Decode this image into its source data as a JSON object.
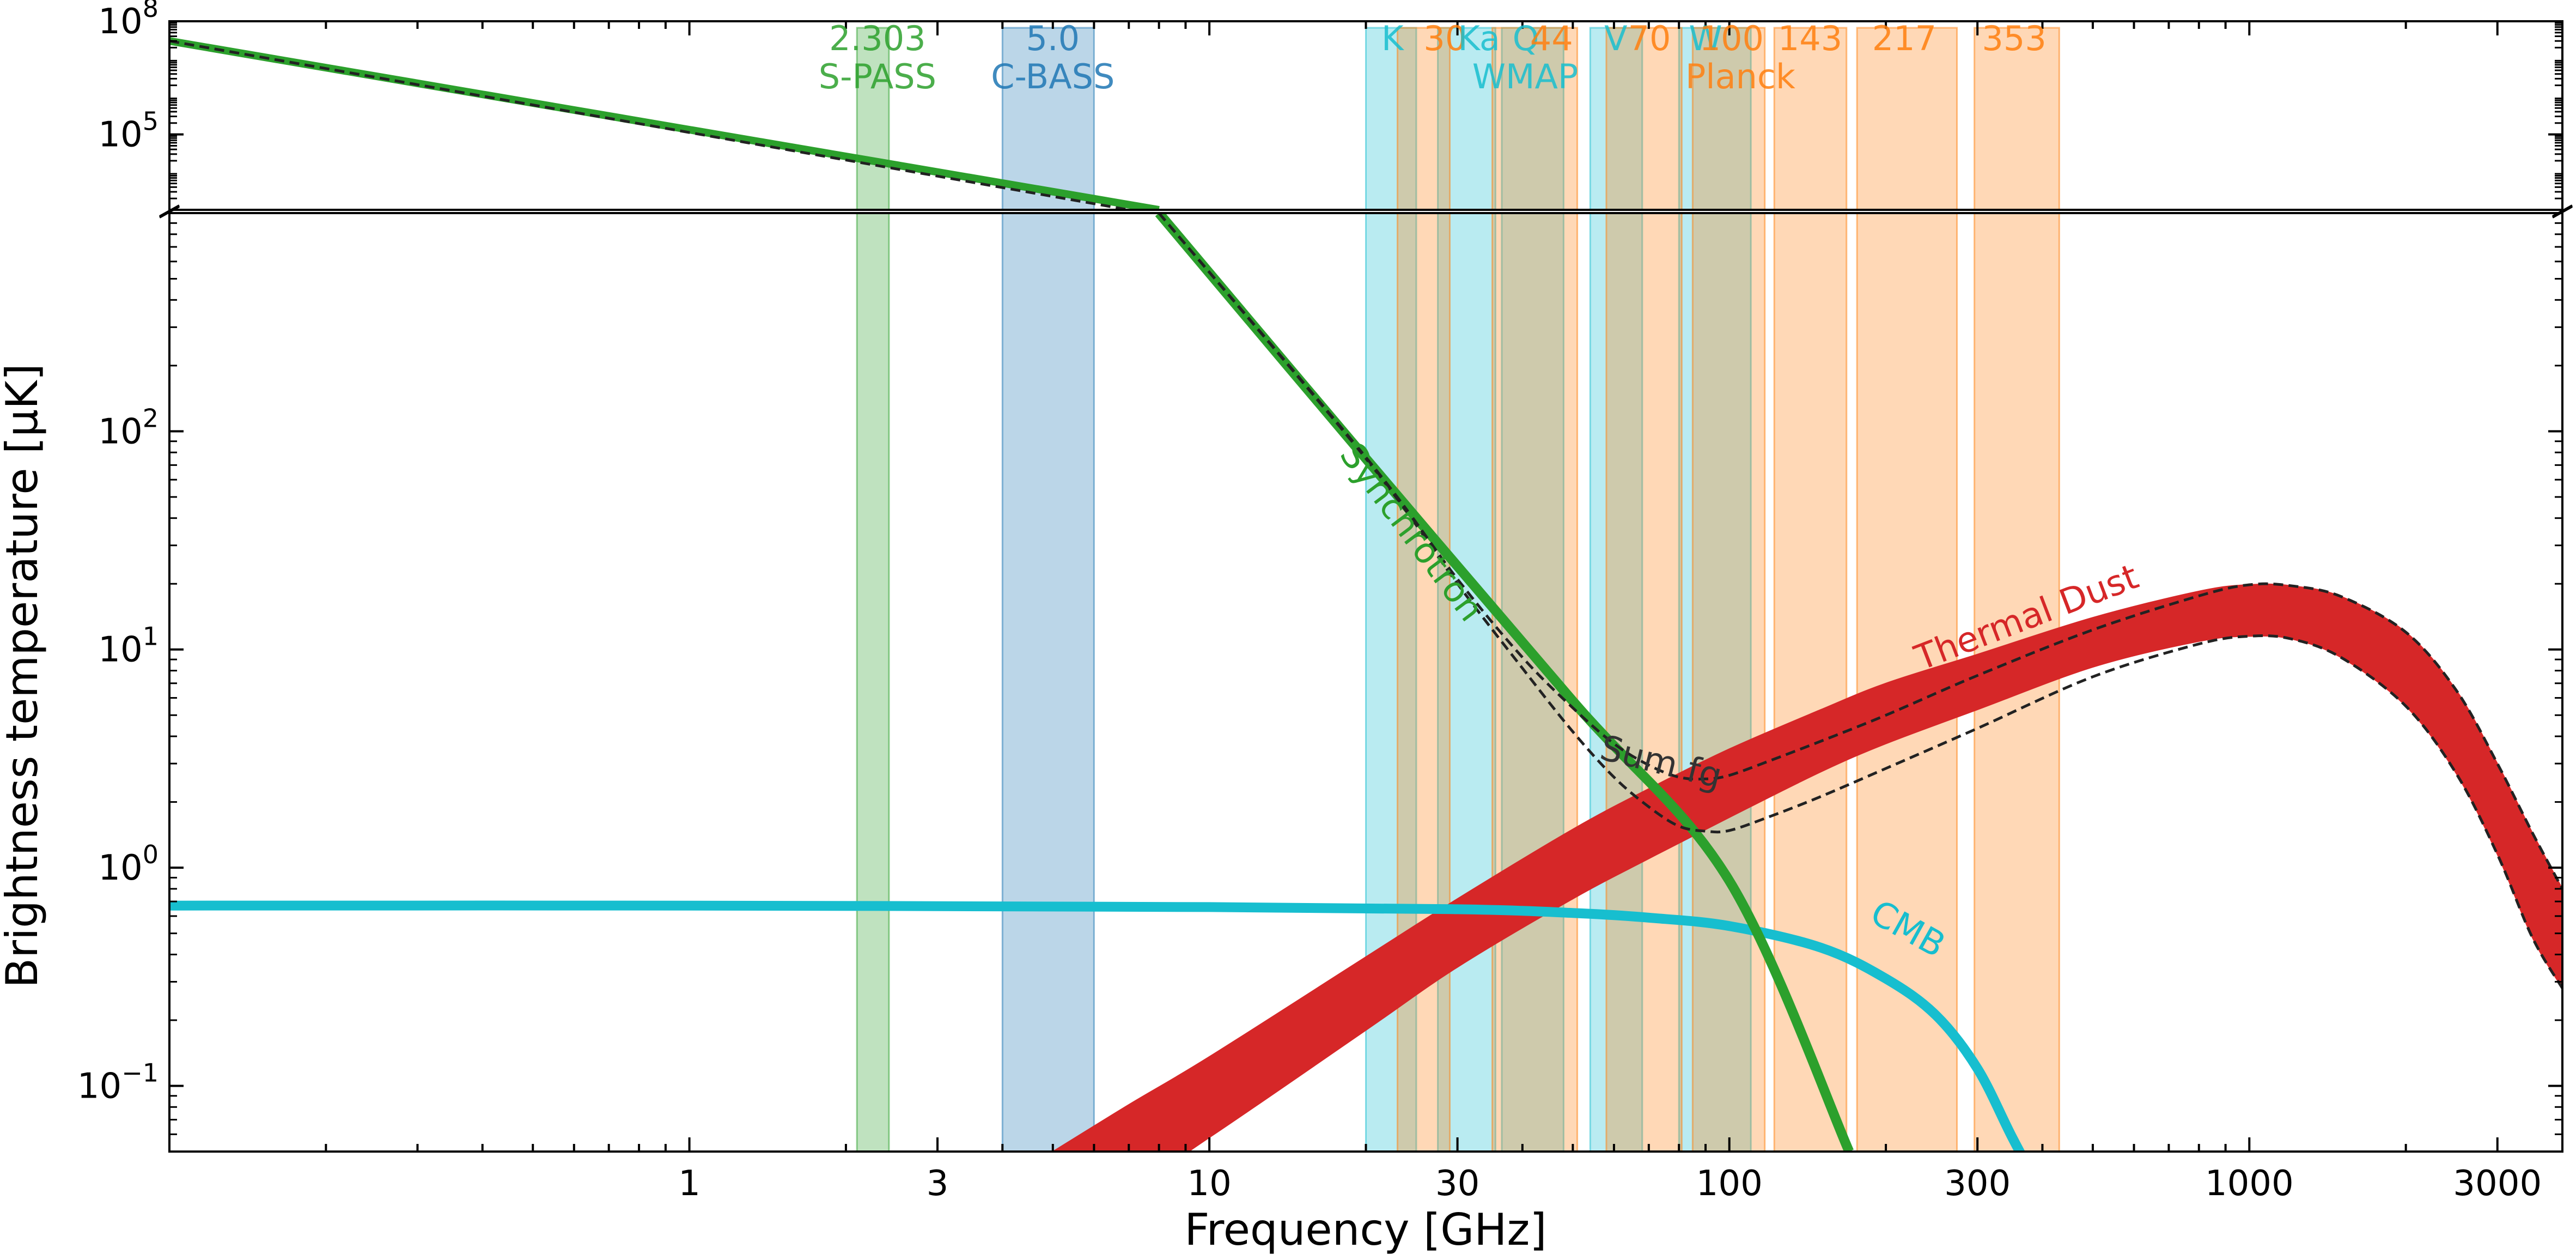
{
  "chart_data": {
    "type": "line",
    "xlabel": "Frequency [GHz]",
    "ylabel": "Brightness temperature [μK]",
    "x_scale": "log",
    "y_scale": "log",
    "xlim": [
      0.1,
      4000
    ],
    "x_ticks": [
      {
        "value": 1,
        "label": "1"
      },
      {
        "value": 3,
        "label": "3"
      },
      {
        "value": 10,
        "label": "10"
      },
      {
        "value": 30,
        "label": "30"
      },
      {
        "value": 100,
        "label": "100"
      },
      {
        "value": 300,
        "label": "300"
      },
      {
        "value": 1000,
        "label": "1000"
      },
      {
        "value": 3000,
        "label": "3000"
      }
    ],
    "panels": {
      "top": {
        "ylim": [
          1000.0,
          100000000.0
        ],
        "y_ticks": [
          {
            "value": 100000.0,
            "base": "10",
            "exp": "5"
          },
          {
            "value": 100000000.0,
            "base": "10",
            "exp": "8"
          }
        ]
      },
      "bottom": {
        "ylim": [
          0.05,
          1000
        ],
        "y_ticks": [
          {
            "value": 0.1,
            "base": "10",
            "exp": "−1"
          },
          {
            "value": 1,
            "base": "10",
            "exp": "0"
          },
          {
            "value": 10,
            "base": "10",
            "exp": "1"
          },
          {
            "value": 100,
            "base": "10",
            "exp": "2"
          }
        ]
      }
    },
    "bands": [
      {
        "lo": 2.1,
        "hi": 2.42,
        "color": "#2ca02c",
        "group": "S-PASS"
      },
      {
        "lo": 4.0,
        "hi": 6.0,
        "color": "#1f77b4",
        "group": "C-BASS"
      },
      {
        "lo": 20.0,
        "hi": 25.0,
        "color": "#17becf",
        "group": "WMAP"
      },
      {
        "lo": 27.5,
        "hi": 35.5,
        "color": "#17becf",
        "group": "WMAP"
      },
      {
        "lo": 36.5,
        "hi": 48.0,
        "color": "#17becf",
        "group": "WMAP"
      },
      {
        "lo": 54.0,
        "hi": 68.0,
        "color": "#17becf",
        "group": "WMAP"
      },
      {
        "lo": 80.0,
        "hi": 110.0,
        "color": "#17becf",
        "group": "WMAP"
      },
      {
        "lo": 23.0,
        "hi": 29.0,
        "color": "#ff7f0e",
        "group": "Planck"
      },
      {
        "lo": 35.0,
        "hi": 51.0,
        "color": "#ff7f0e",
        "group": "Planck"
      },
      {
        "lo": 58.0,
        "hi": 81.0,
        "color": "#ff7f0e",
        "group": "Planck"
      },
      {
        "lo": 85.0,
        "hi": 117.0,
        "color": "#ff7f0e",
        "group": "Planck"
      },
      {
        "lo": 122.0,
        "hi": 168.0,
        "color": "#ff7f0e",
        "group": "Planck"
      },
      {
        "lo": 176.0,
        "hi": 274.0,
        "color": "#ff7f0e",
        "group": "Planck"
      },
      {
        "lo": 296.0,
        "hi": 431.0,
        "color": "#ff7f0e",
        "group": "Planck"
      }
    ],
    "band_labels": [
      {
        "text": "2.303",
        "x": 2.3,
        "row": 1,
        "color": "#2ca02c"
      },
      {
        "text": "S-PASS",
        "x": 2.3,
        "row": 2,
        "color": "#2ca02c"
      },
      {
        "text": "5.0",
        "x": 5.0,
        "row": 1,
        "color": "#1f77b4"
      },
      {
        "text": "C-BASS",
        "x": 5.0,
        "row": 2,
        "color": "#1f77b4"
      },
      {
        "text": "K",
        "x": 22.5,
        "row": 1,
        "color": "#17becf"
      },
      {
        "text": "30",
        "x": 28.4,
        "row": 1,
        "color": "#ff7f0e"
      },
      {
        "text": "Ka",
        "x": 33.0,
        "row": 1,
        "color": "#17becf"
      },
      {
        "text": "Q",
        "x": 40.6,
        "row": 1,
        "color": "#17becf"
      },
      {
        "text": "44",
        "x": 45.5,
        "row": 1,
        "color": "#ff7f0e"
      },
      {
        "text": "V",
        "x": 60.5,
        "row": 1,
        "color": "#17becf"
      },
      {
        "text": "70",
        "x": 70.2,
        "row": 1,
        "color": "#ff7f0e"
      },
      {
        "text": "W",
        "x": 90.0,
        "row": 1,
        "color": "#17becf"
      },
      {
        "text": "100",
        "x": 101.0,
        "row": 1,
        "color": "#ff7f0e"
      },
      {
        "text": "WMAP",
        "x": 40.5,
        "row": 2,
        "color": "#17becf"
      },
      {
        "text": "143",
        "x": 143.0,
        "row": 1,
        "color": "#ff7f0e"
      },
      {
        "text": "Planck",
        "x": 105.0,
        "row": 2,
        "color": "#ff7f0e"
      },
      {
        "text": "217",
        "x": 217.0,
        "row": 1,
        "color": "#ff7f0e"
      },
      {
        "text": "353",
        "x": 353.0,
        "row": 1,
        "color": "#ff7f0e"
      }
    ],
    "series": [
      {
        "name": "Synchrotron",
        "color": "#2ca02c",
        "kind": "line",
        "high_segment": {
          "x": [
            0.1,
            8.0
          ],
          "y": [
            30000000.0,
            1000.0
          ]
        },
        "low_segment": {
          "x": [
            8.0,
            20,
            50,
            100,
            170
          ],
          "y": [
            1000,
            75,
            5.8,
            0.87,
            0.05
          ]
        }
      },
      {
        "name": "Thermal Dust",
        "color": "#d62728",
        "kind": "band",
        "x": [
          5,
          7,
          10,
          20,
          30,
          50,
          70,
          100,
          150,
          200,
          300,
          500,
          800,
          1000,
          1200,
          1500,
          2000,
          2500,
          3000,
          3500,
          4000
        ],
        "y_upper": [
          0.05,
          0.082,
          0.136,
          0.39,
          0.72,
          1.5,
          2.3,
          3.5,
          5.3,
          7.0,
          9.5,
          14.0,
          18.5,
          19.8,
          19.6,
          17.5,
          12.0,
          6.5,
          3.0,
          1.45,
          0.8
        ],
        "y_lower": [
          0.029,
          0.034,
          0.058,
          0.18,
          0.35,
          0.72,
          1.1,
          1.7,
          2.75,
          3.7,
          5.3,
          8.3,
          10.9,
          11.5,
          11.2,
          9.2,
          5.5,
          2.7,
          1.15,
          0.48,
          0.28
        ]
      },
      {
        "name": "CMB",
        "color": "#17becf",
        "kind": "line",
        "x": [
          0.1,
          1,
          10,
          30,
          50,
          70,
          100,
          150,
          200,
          250,
          300,
          350,
          400
        ],
        "y": [
          0.67,
          0.67,
          0.66,
          0.645,
          0.62,
          0.59,
          0.54,
          0.43,
          0.31,
          0.21,
          0.12,
          0.058,
          0.032
        ]
      },
      {
        "name": "Sum fg",
        "color": "#222222",
        "kind": "dashed-pair",
        "high_segment": {
          "x": [
            0.1,
            7.0
          ],
          "y": [
            30000000.0,
            1000.0
          ]
        },
        "x": [
          8,
          20,
          30,
          40,
          50,
          60,
          70,
          80,
          90,
          100,
          120,
          150,
          200,
          300,
          500,
          800,
          1000,
          1200,
          1500,
          2000,
          2500,
          3000,
          3500,
          4000
        ],
        "y_upper": [
          1000,
          76,
          21,
          9.2,
          5.4,
          3.7,
          2.95,
          2.6,
          2.55,
          2.65,
          3.1,
          3.8,
          5.0,
          7.6,
          12.3,
          17.6,
          19.8,
          19.6,
          17.5,
          12.0,
          6.5,
          3.0,
          1.45,
          0.8
        ],
        "y_lower": [
          1000,
          75,
          20,
          8.2,
          4.2,
          2.6,
          1.9,
          1.55,
          1.47,
          1.48,
          1.72,
          2.12,
          2.85,
          4.35,
          7.5,
          10.6,
          11.5,
          11.2,
          9.2,
          5.5,
          2.7,
          1.15,
          0.48,
          0.28
        ]
      }
    ],
    "annotations": [
      {
        "text": "Synchrotron",
        "x": 23.5,
        "y": 32,
        "rotate": 53,
        "color": "#2ca02c"
      },
      {
        "text": "Thermal Dust",
        "x": 380,
        "y": 12.5,
        "rotate": -21,
        "color": "#d62728"
      },
      {
        "text": "Sum fg",
        "x": 73,
        "y": 2.7,
        "rotate": 14,
        "color": "#333333"
      },
      {
        "text": "CMB",
        "x": 215,
        "y": 0.47,
        "rotate": 29,
        "color": "#17becf"
      }
    ],
    "grid": false,
    "legend": "none"
  }
}
